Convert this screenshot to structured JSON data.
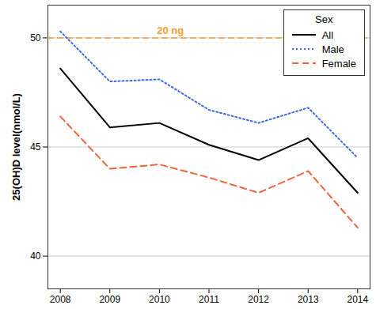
{
  "chart_data": {
    "type": "line",
    "y_label": "25(OH)D level(nmol/L)",
    "x": [
      2008,
      2009,
      2010,
      2011,
      2012,
      2013,
      2014
    ],
    "series": [
      {
        "name": "All",
        "color": "#000000",
        "line_style": "solid",
        "values": [
          48.6,
          45.9,
          46.1,
          45.1,
          44.4,
          45.4,
          42.9
        ]
      },
      {
        "name": "Male",
        "color": "#4169e1",
        "line_style": "dotted",
        "values": [
          50.3,
          48.0,
          48.1,
          46.7,
          46.1,
          46.8,
          44.5
        ]
      },
      {
        "name": "Female",
        "color": "#f4623a",
        "line_style": "dashed",
        "values": [
          46.4,
          44.0,
          44.2,
          43.6,
          42.9,
          43.9,
          41.3
        ]
      }
    ],
    "xlim": [
      2007.75,
      2014.25
    ],
    "xticks": [
      2008,
      2009,
      2010,
      2011,
      2012,
      2013,
      2014
    ],
    "ylim": [
      38.5,
      51.5
    ],
    "yticks": [
      40,
      45,
      50
    ],
    "grid": true,
    "legend": "top-right",
    "legend_title": "Sex",
    "annotations": [
      {
        "text": "20 ng",
        "y": 50,
        "color": "#f0a030"
      }
    ]
  }
}
